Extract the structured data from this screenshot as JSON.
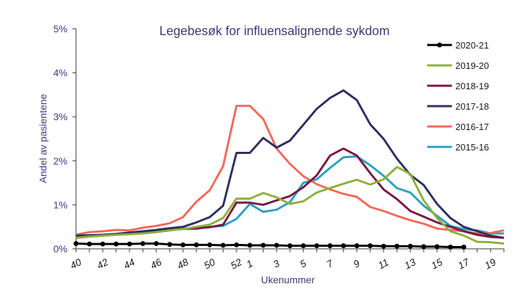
{
  "chart_data": {
    "type": "line",
    "title": "Legebesøk for influensalignende sykdom",
    "xlabel": "Ukenummer",
    "ylabel": "Andel av pasientene",
    "ylim": [
      0,
      5
    ],
    "grid": false,
    "legend_position": "right",
    "x_categories": [
      "40",
      "41",
      "42",
      "43",
      "44",
      "45",
      "46",
      "47",
      "48",
      "49",
      "50",
      "51",
      "52",
      "1",
      "2",
      "3",
      "4",
      "5",
      "6",
      "7",
      "8",
      "9",
      "10",
      "11",
      "12",
      "13",
      "14",
      "15",
      "16",
      "17",
      "18",
      "19",
      "20"
    ],
    "x_tick_labels": [
      "40",
      "42",
      "44",
      "46",
      "48",
      "50",
      "52",
      "1",
      "3",
      "5",
      "7",
      "9",
      "11",
      "13",
      "15",
      "17",
      "19"
    ],
    "y_ticks": [
      0,
      1,
      2,
      3,
      4,
      5
    ],
    "y_tick_labels": [
      "0%",
      "1%",
      "2%",
      "3%",
      "4%",
      "5%"
    ],
    "series": [
      {
        "name": "2020-21",
        "color": "#000000",
        "marker": "circle",
        "values": [
          0.12,
          0.11,
          0.11,
          0.11,
          0.11,
          0.12,
          0.12,
          0.1,
          0.09,
          0.09,
          0.09,
          0.08,
          0.09,
          0.08,
          0.08,
          0.08,
          0.07,
          0.07,
          0.07,
          0.07,
          0.07,
          0.07,
          0.07,
          0.06,
          0.06,
          0.06,
          0.05,
          0.05,
          0.04,
          0.04,
          null,
          null,
          null
        ]
      },
      {
        "name": "2019-20",
        "color": "#8db03a",
        "values": [
          0.25,
          0.28,
          0.3,
          0.32,
          0.33,
          0.35,
          0.38,
          0.42,
          0.45,
          0.5,
          0.55,
          0.7,
          1.14,
          1.14,
          1.27,
          1.17,
          1.02,
          1.08,
          1.28,
          1.38,
          1.48,
          1.57,
          1.46,
          1.58,
          1.86,
          1.7,
          1.1,
          0.7,
          0.4,
          0.3,
          0.16,
          0.15,
          0.12
        ]
      },
      {
        "name": "2018-19",
        "color": "#7a1545",
        "values": [
          0.25,
          0.28,
          0.3,
          0.32,
          0.34,
          0.36,
          0.38,
          0.42,
          0.46,
          0.47,
          0.49,
          0.55,
          1.05,
          1.05,
          1.0,
          1.1,
          1.2,
          1.4,
          1.67,
          2.12,
          2.28,
          2.12,
          1.72,
          1.35,
          1.13,
          0.86,
          0.73,
          0.6,
          0.5,
          0.4,
          0.32,
          0.27,
          0.25
        ]
      },
      {
        "name": "2017-18",
        "color": "#2e2f5e",
        "values": [
          0.3,
          0.31,
          0.32,
          0.34,
          0.37,
          0.4,
          0.43,
          0.47,
          0.5,
          0.6,
          0.72,
          0.98,
          2.18,
          2.18,
          2.52,
          2.3,
          2.46,
          2.82,
          3.18,
          3.43,
          3.6,
          3.38,
          2.83,
          2.5,
          2.05,
          1.68,
          1.45,
          1.02,
          0.7,
          0.5,
          0.4,
          0.3,
          0.25
        ]
      },
      {
        "name": "2016-17",
        "color": "#f2685a",
        "values": [
          0.32,
          0.38,
          0.4,
          0.43,
          0.42,
          0.48,
          0.52,
          0.58,
          0.72,
          1.07,
          1.33,
          1.88,
          3.25,
          3.25,
          2.95,
          2.28,
          1.93,
          1.65,
          1.47,
          1.35,
          1.25,
          1.18,
          0.95,
          0.86,
          0.75,
          0.65,
          0.57,
          0.46,
          0.43,
          0.4,
          0.35,
          0.36,
          0.42
        ]
      },
      {
        "name": "2015-16",
        "color": "#2aa0c2",
        "values": [
          0.3,
          0.3,
          0.31,
          0.33,
          0.36,
          0.38,
          0.4,
          0.43,
          0.45,
          0.45,
          0.5,
          0.52,
          0.68,
          1.02,
          0.84,
          0.89,
          1.06,
          1.5,
          1.58,
          1.84,
          2.08,
          2.1,
          1.9,
          1.66,
          1.38,
          1.28,
          0.98,
          0.75,
          0.52,
          0.45,
          0.42,
          0.35,
          0.35
        ]
      }
    ]
  }
}
